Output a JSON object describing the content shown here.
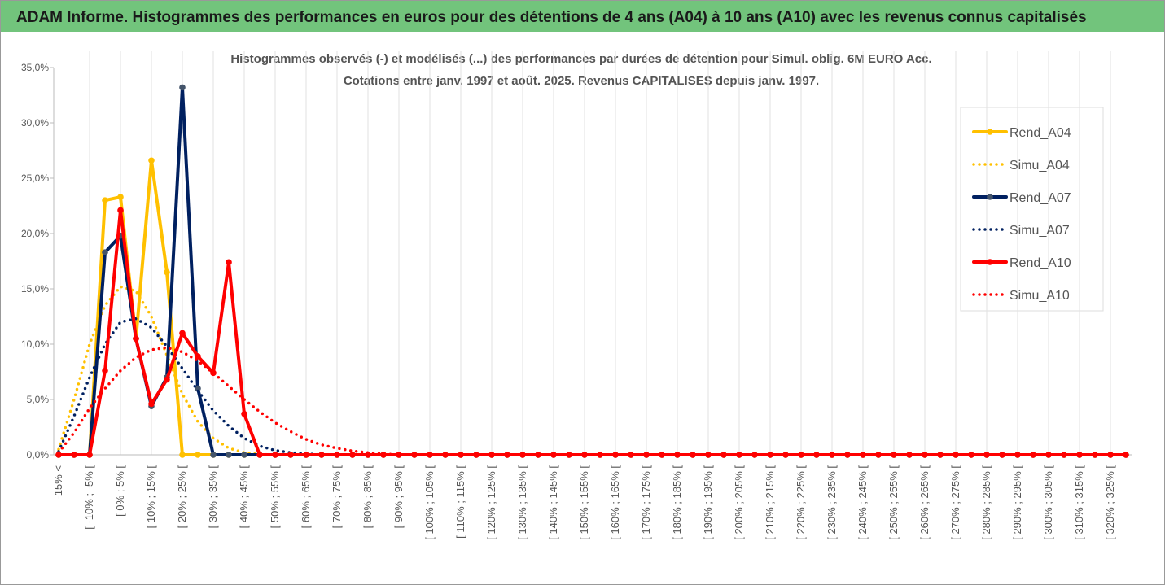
{
  "chart_data": {
    "type": "line",
    "title": "ADAM Informe. Histogrammes des performances en euros pour des détentions de 4 ans (A04) à 10 ans (A10) avec les revenus connus capitalisés",
    "subtitle": [
      "Histogrammes observés (-) et modélisés (...) des performances par durées de détention pour Simul. oblig. 6M EURO Acc.",
      "Cotations entre janv. 1997 et août. 2025. Revenus CAPITALISES depuis janv. 1997."
    ],
    "categories": [
      "-15% <",
      null,
      "[ -10% ; -5% [",
      null,
      "[ 0% ; 5% [",
      null,
      "[ 10% ; 15% [",
      null,
      "[ 20% ; 25% [",
      null,
      "[ 30% ; 35% [",
      null,
      "[ 40% ; 45% [",
      null,
      "[ 50% ; 55% [",
      null,
      "[ 60% ; 65% [",
      null,
      "[ 70% ; 75% [",
      null,
      "[ 80% ; 85% [",
      null,
      "[ 90% ; 95% [",
      null,
      "[ 100% ; 105% [",
      null,
      "[ 110% ; 115% [",
      null,
      "[ 120% ; 125% [",
      null,
      "[ 130% ; 135% [",
      null,
      "[ 140% ; 145% [",
      null,
      "[ 150% ; 155% [",
      null,
      "[ 160% ; 165% [",
      null,
      "[ 170% ; 175% [",
      null,
      "[ 180% ; 185% [",
      null,
      "[ 190% ; 195% [",
      null,
      "[ 200% ; 205% [",
      null,
      "[ 210% ; 215% [",
      null,
      "[ 220% ; 225% [",
      null,
      "[ 230% ; 235% [",
      null,
      "[ 240% ; 245% [",
      null,
      "[ 250% ; 255% [",
      null,
      "[ 260% ; 265% [",
      null,
      "[ 270% ; 275% [",
      null,
      "[ 280% ; 285% [",
      null,
      "[ 290% ; 295% [",
      null,
      "[ 300% ; 305% [",
      null,
      "[ 310% ; 315% [",
      null,
      "[ 320% ; 325% [",
      null
    ],
    "series": [
      {
        "name": "Rend_A04",
        "color": "#FFC000",
        "style": "solid",
        "values": [
          0,
          0,
          0,
          23.0,
          23.3,
          10.5,
          26.6,
          16.5,
          0,
          0,
          0,
          0,
          0,
          0,
          0,
          0,
          0,
          0,
          0,
          0,
          0,
          0,
          0,
          0,
          0,
          0,
          0,
          0,
          0,
          0,
          0,
          0,
          0,
          0,
          0,
          0,
          0,
          0,
          0,
          0,
          0,
          0,
          0,
          0,
          0,
          0,
          0,
          0,
          0,
          0,
          0,
          0,
          0,
          0,
          0,
          0,
          0,
          0,
          0,
          0,
          0,
          0,
          0,
          0,
          0,
          0,
          0,
          0,
          0,
          0
        ]
      },
      {
        "name": "Simu_A04",
        "color": "#FFC000",
        "style": "dotted",
        "values": [
          0.5,
          5,
          10,
          13.5,
          15.2,
          14.8,
          12.5,
          9,
          5.5,
          3,
          1.5,
          0.6,
          0.2,
          0.05,
          0,
          0,
          0,
          0,
          0,
          0,
          0,
          0,
          0,
          0,
          0,
          0,
          0,
          0,
          0,
          0,
          0,
          0,
          0,
          0,
          0,
          0,
          0,
          0,
          0,
          0,
          0,
          0,
          0,
          0,
          0,
          0,
          0,
          0,
          0,
          0,
          0,
          0,
          0,
          0,
          0,
          0,
          0,
          0,
          0,
          0,
          0,
          0,
          0,
          0,
          0,
          0,
          0,
          0,
          0,
          0
        ]
      },
      {
        "name": "Rend_A07",
        "color": "#002060",
        "style": "solid",
        "values": [
          0,
          0,
          0,
          18.3,
          19.8,
          10.5,
          4.4,
          7.0,
          33.2,
          6.0,
          0,
          0,
          0,
          0,
          0,
          0,
          0,
          0,
          0,
          0,
          0,
          0,
          0,
          0,
          0,
          0,
          0,
          0,
          0,
          0,
          0,
          0,
          0,
          0,
          0,
          0,
          0,
          0,
          0,
          0,
          0,
          0,
          0,
          0,
          0,
          0,
          0,
          0,
          0,
          0,
          0,
          0,
          0,
          0,
          0,
          0,
          0,
          0,
          0,
          0,
          0,
          0,
          0,
          0,
          0,
          0,
          0,
          0,
          0,
          0
        ]
      },
      {
        "name": "Simu_A07",
        "color": "#002060",
        "style": "dotted",
        "values": [
          0.3,
          3.5,
          7,
          10,
          12,
          12.3,
          11.5,
          9.8,
          7.8,
          5.8,
          4,
          2.6,
          1.5,
          0.8,
          0.4,
          0.2,
          0.1,
          0,
          0,
          0,
          0,
          0,
          0,
          0,
          0,
          0,
          0,
          0,
          0,
          0,
          0,
          0,
          0,
          0,
          0,
          0,
          0,
          0,
          0,
          0,
          0,
          0,
          0,
          0,
          0,
          0,
          0,
          0,
          0,
          0,
          0,
          0,
          0,
          0,
          0,
          0,
          0,
          0,
          0,
          0,
          0,
          0,
          0,
          0,
          0,
          0,
          0,
          0,
          0,
          0
        ]
      },
      {
        "name": "Rend_A10",
        "color": "#FF0000",
        "style": "solid",
        "values": [
          0,
          0,
          0,
          7.6,
          22.1,
          10.5,
          4.6,
          6.8,
          11.0,
          8.9,
          7.4,
          17.4,
          3.7,
          0,
          0,
          0,
          0,
          0,
          0,
          0,
          0,
          0,
          0,
          0,
          0,
          0,
          0,
          0,
          0,
          0,
          0,
          0,
          0,
          0,
          0,
          0,
          0,
          0,
          0,
          0,
          0,
          0,
          0,
          0,
          0,
          0,
          0,
          0,
          0,
          0,
          0,
          0,
          0,
          0,
          0,
          0,
          0,
          0,
          0,
          0,
          0,
          0,
          0,
          0,
          0,
          0,
          0,
          0,
          0,
          0
        ]
      },
      {
        "name": "Simu_A10",
        "color": "#FF0000",
        "style": "dotted",
        "values": [
          0.2,
          2,
          4.2,
          6,
          7.6,
          8.8,
          9.5,
          9.7,
          9.3,
          8.5,
          7.4,
          6.2,
          5,
          3.9,
          2.9,
          2.1,
          1.4,
          0.9,
          0.6,
          0.35,
          0.2,
          0.1,
          0,
          0,
          0,
          0,
          0,
          0,
          0,
          0,
          0,
          0,
          0,
          0,
          0,
          0,
          0,
          0,
          0,
          0,
          0,
          0,
          0,
          0,
          0,
          0,
          0,
          0,
          0,
          0,
          0,
          0,
          0,
          0,
          0,
          0,
          0,
          0,
          0,
          0,
          0,
          0,
          0,
          0,
          0,
          0,
          0,
          0,
          0,
          0
        ]
      }
    ],
    "ylim": [
      0,
      35
    ],
    "yticks": [
      {
        "value": 0,
        "label": "0,0%"
      },
      {
        "value": 5,
        "label": "5,0%"
      },
      {
        "value": 10,
        "label": "10,0%"
      },
      {
        "value": 15,
        "label": "15,0%"
      },
      {
        "value": 20,
        "label": "20,0%"
      },
      {
        "value": 25,
        "label": "25,0%"
      },
      {
        "value": 30,
        "label": "30,0%"
      },
      {
        "value": 35,
        "label": "35,0%"
      }
    ],
    "grid": true,
    "legend": "right"
  }
}
